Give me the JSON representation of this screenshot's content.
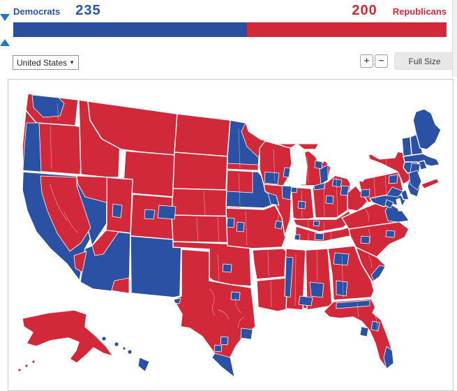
{
  "seat_bar": {
    "democrats_label": "Democrats",
    "democrats_seats": "235",
    "republicans_seats": "200",
    "republicans_label": "Republicans",
    "democrat_color": "#2a4f9e",
    "republican_color": "#d2293a",
    "democrat_share": 0.5402,
    "majority_marker_share": 0.5
  },
  "controls": {
    "region_select_value": "United States",
    "zoom_in_label": "+",
    "zoom_out_label": "−",
    "full_size_label": "Full Size"
  },
  "map": {
    "colors": {
      "democrat": "#2a51a3",
      "republican": "#d2293a"
    },
    "democrat_regions": [
      "california",
      "nevada",
      "arizona",
      "new-mexico",
      "minnesota",
      "iowa",
      "maryland",
      "delaware",
      "new-jersey",
      "vermont",
      "new-hampshire",
      "maine",
      "massachusetts",
      "connecticut",
      "rhode-island",
      "hawaii",
      "wa-puget",
      "or-coast",
      "ut-saltlake",
      "co-denver",
      "co-west",
      "ks-kansascity",
      "ok-oklahomacity",
      "tx-elpaso",
      "tx-south",
      "tx-austin",
      "tx-sanantonio",
      "tx-houston",
      "tx-dallas",
      "wi-madison",
      "wi-milwaukee",
      "il-chicago",
      "il-west",
      "mi-detroit",
      "mi-flint",
      "in-gary",
      "in-indianapolis",
      "oh-toledo",
      "oh-cleveland",
      "oh-columbus",
      "oh-akron",
      "mo-kansascity",
      "mo-stlouis",
      "ky-louisville",
      "tn-nashville",
      "tn-memphis",
      "ms-delta",
      "al-district7",
      "la-neworleans",
      "ga-atlanta",
      "ga-southwest",
      "sc-coast",
      "nc-spot-1",
      "nc-spot-2",
      "va-east",
      "va-north",
      "pa-southeast",
      "pa-northeast",
      "pa-pittsburgh",
      "ny-albany",
      "ny-rochester",
      "ny-nyc-metro",
      "fl-north",
      "fl-orlando",
      "fl-tampa",
      "fl-southeast"
    ],
    "republican_regions": [
      "washington",
      "oregon",
      "idaho",
      "montana",
      "wyoming",
      "utah",
      "colorado",
      "north-dakota",
      "south-dakota",
      "nebraska",
      "kansas",
      "oklahoma",
      "texas",
      "missouri",
      "wisconsin",
      "michigan-up",
      "michigan",
      "illinois",
      "indiana",
      "ohio",
      "kentucky",
      "tennessee",
      "arkansas",
      "louisiana",
      "mississippi",
      "alabama",
      "georgia",
      "florida",
      "south-carolina",
      "north-carolina",
      "virginia",
      "west-virginia",
      "pennsylvania",
      "new-york",
      "alaska",
      "ca-inland",
      "ca-south-inland",
      "nv-north",
      "az-northwest",
      "az-southeast",
      "mn-northeast",
      "mn-south",
      "ia-northwest",
      "ny-longisland-east"
    ]
  }
}
